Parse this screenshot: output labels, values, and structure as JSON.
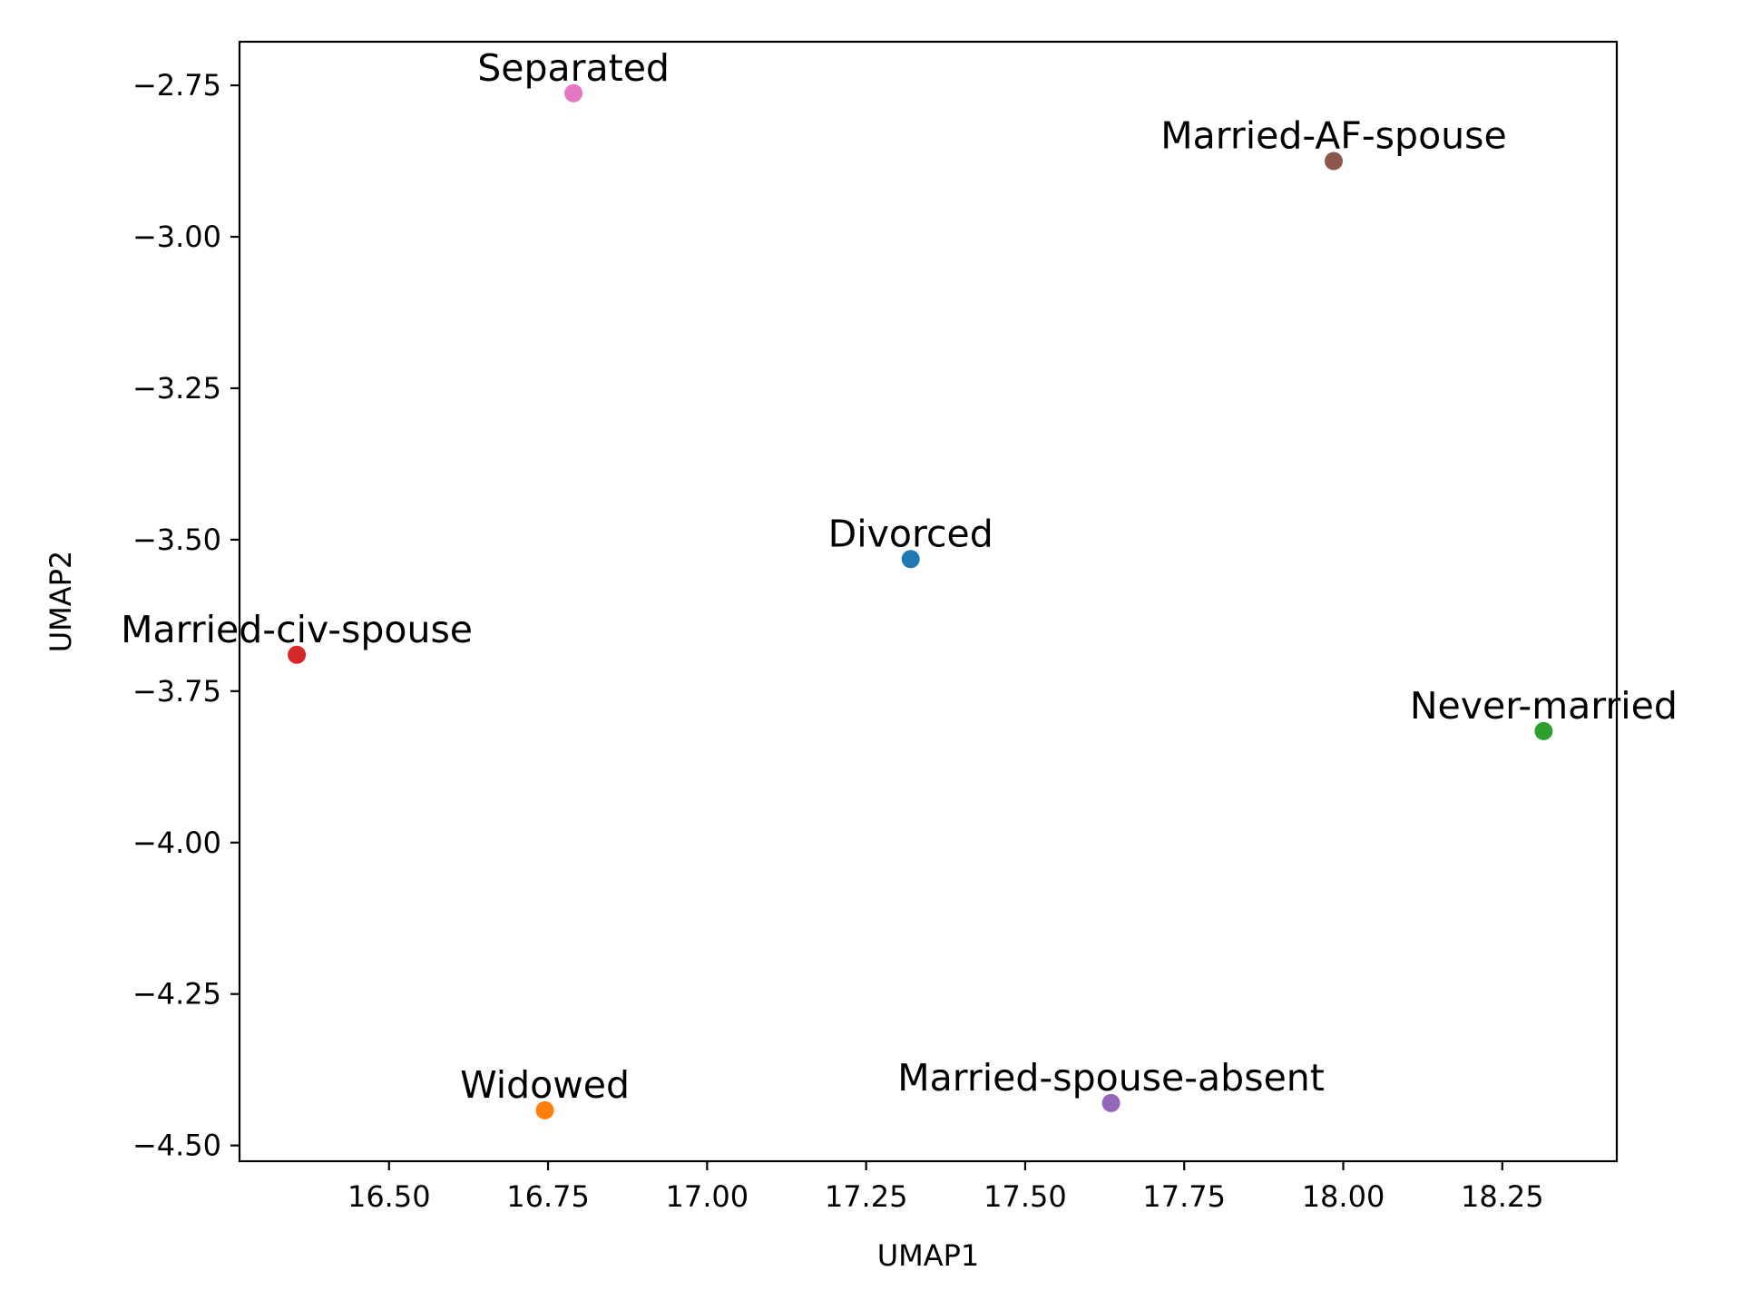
{
  "chart_data": {
    "type": "scatter",
    "title": "",
    "xlabel": "UMAP1",
    "ylabel": "UMAP2",
    "xlim": [
      16.265,
      18.43
    ],
    "ylim": [
      -4.526,
      -2.678
    ],
    "grid": false,
    "legend": "none",
    "x_ticks": [
      16.5,
      16.75,
      17.0,
      17.25,
      17.5,
      17.75,
      18.0,
      18.25
    ],
    "x_tick_labels": [
      "16.50",
      "16.75",
      "17.00",
      "17.25",
      "17.50",
      "17.75",
      "18.00",
      "18.25"
    ],
    "y_ticks": [
      -2.75,
      -3.0,
      -3.25,
      -3.5,
      -3.75,
      -4.0,
      -4.25,
      -4.5
    ],
    "y_tick_labels": [
      "−2.75",
      "−3.00",
      "−3.25",
      "−3.50",
      "−3.75",
      "−4.00",
      "−4.25",
      "−4.50"
    ],
    "points": [
      {
        "label": "Divorced",
        "x": 17.32,
        "y": -3.532,
        "color": "#1f77b4"
      },
      {
        "label": "Widowed",
        "x": 16.745,
        "y": -4.442,
        "color": "#ff7f0e"
      },
      {
        "label": "Never-married",
        "x": 18.315,
        "y": -3.816,
        "color": "#2ca02c"
      },
      {
        "label": "Married-civ-spouse",
        "x": 16.355,
        "y": -3.69,
        "color": "#d62728"
      },
      {
        "label": "Married-spouse-absent",
        "x": 17.635,
        "y": -4.43,
        "color": "#9467bd"
      },
      {
        "label": "Married-AF-spouse",
        "x": 17.985,
        "y": -2.875,
        "color": "#8c564b"
      },
      {
        "label": "Separated",
        "x": 16.79,
        "y": -2.763,
        "color": "#e377c2"
      }
    ]
  }
}
